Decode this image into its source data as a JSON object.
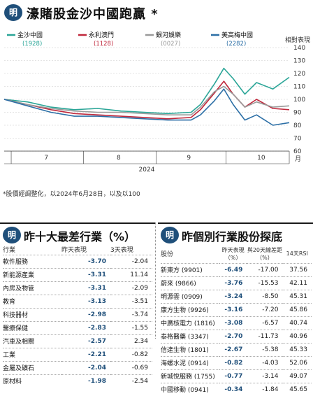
{
  "title": "濠賭股金沙中國跑贏 *",
  "badge": "明",
  "chart_data": {
    "type": "line",
    "y_axis_label": "相對表現",
    "ylim": [
      60,
      140
    ],
    "y_ticks": [
      60,
      70,
      80,
      90,
      100,
      110,
      120,
      130,
      140
    ],
    "x_ticks": [
      "7",
      "8",
      "9",
      "10"
    ],
    "x_year": "2024",
    "x_unit": "月",
    "x": [
      "2024-06-28",
      "2024-07-08",
      "2024-07-18",
      "2024-07-28",
      "2024-08-07",
      "2024-08-17",
      "2024-08-27",
      "2024-09-06",
      "2024-09-16",
      "2024-09-20",
      "2024-09-26",
      "2024-09-30",
      "2024-10-04",
      "2024-10-09",
      "2024-10-14",
      "2024-10-21",
      "2024-10-28"
    ],
    "series": [
      {
        "name": "金沙中國",
        "code": "(1928)",
        "color": "#2aa597",
        "values": [
          100,
          98,
          94,
          92,
          93,
          91,
          90,
          89,
          90,
          96,
          112,
          124,
          116,
          104,
          113,
          108,
          117
        ]
      },
      {
        "name": "永利澳門",
        "code": "(1128)",
        "color": "#c0283c",
        "values": [
          100,
          96,
          92,
          89,
          88,
          87,
          86,
          85,
          86,
          92,
          105,
          114,
          104,
          94,
          100,
          93,
          92
        ]
      },
      {
        "name": "銀河娛樂",
        "code": "(0027)",
        "color": "#9a9a9a",
        "values": [
          100,
          96,
          93,
          91,
          90,
          90,
          89,
          88,
          88,
          94,
          106,
          110,
          104,
          94,
          98,
          94,
          95
        ]
      },
      {
        "name": "美高梅中國",
        "code": "(2282)",
        "color": "#2c6fa6",
        "values": [
          100,
          95,
          90,
          87,
          87,
          86,
          85,
          84,
          84,
          88,
          99,
          108,
          96,
          84,
          88,
          80,
          82
        ]
      }
    ]
  },
  "note": "*股價經調整化，以2024年6月28日，以及以100",
  "left_section": {
    "title": "昨十大最差行業（%）",
    "headers": [
      "行業",
      "昨天表現",
      "3天表現"
    ],
    "rows": [
      [
        "軟件服務",
        "-3.70",
        "-2.04"
      ],
      [
        "新能源產業",
        "-3.31",
        "11.14"
      ],
      [
        "內房及物管",
        "-3.31",
        "-2.09"
      ],
      [
        "教育",
        "-3.13",
        "-3.51"
      ],
      [
        "科技器材",
        "-2.98",
        "-3.74"
      ],
      [
        "醫療保健",
        "-2.83",
        "-1.55"
      ],
      [
        "汽車及相關",
        "-2.57",
        "2.34"
      ],
      [
        "工業",
        "-2.21",
        "-0.82"
      ],
      [
        "金屬及礦石",
        "-2.04",
        "-0.69"
      ],
      [
        "原材料",
        "-1.98",
        "-2.54"
      ]
    ]
  },
  "right_section": {
    "title": "昨個別行業股份探底",
    "headers": [
      "股份",
      "昨天表現（%）",
      "與20天線差距（%）",
      "14天RSI"
    ],
    "rows": [
      [
        "新東方 (9901)",
        "-6.49",
        "-17.00",
        "37.56"
      ],
      [
        "蔚來 (9866)",
        "-3.76",
        "-15.53",
        "42.11"
      ],
      [
        "明源雲 (0909)",
        "-3.24",
        "-8.50",
        "45.31"
      ],
      [
        "康方生物 (9926)",
        "-3.16",
        "-7.20",
        "45.86"
      ],
      [
        "中廣核電力 (1816)",
        "-3.08",
        "-6.57",
        "40.74"
      ],
      [
        "泰格醫藥 (3347)",
        "-2.70",
        "-11.73",
        "40.96"
      ],
      [
        "信達生物 (1801)",
        "-2.67",
        "-5.38",
        "45.33"
      ],
      [
        "海螺水泥 (0914)",
        "-0.82",
        "-4.03",
        "52.06"
      ],
      [
        "新城悅服務 (1755)",
        "-0.77",
        "-3.14",
        "49.07"
      ],
      [
        "中國移動 (0941)",
        "-0.34",
        "-1.84",
        "45.65"
      ]
    ]
  }
}
